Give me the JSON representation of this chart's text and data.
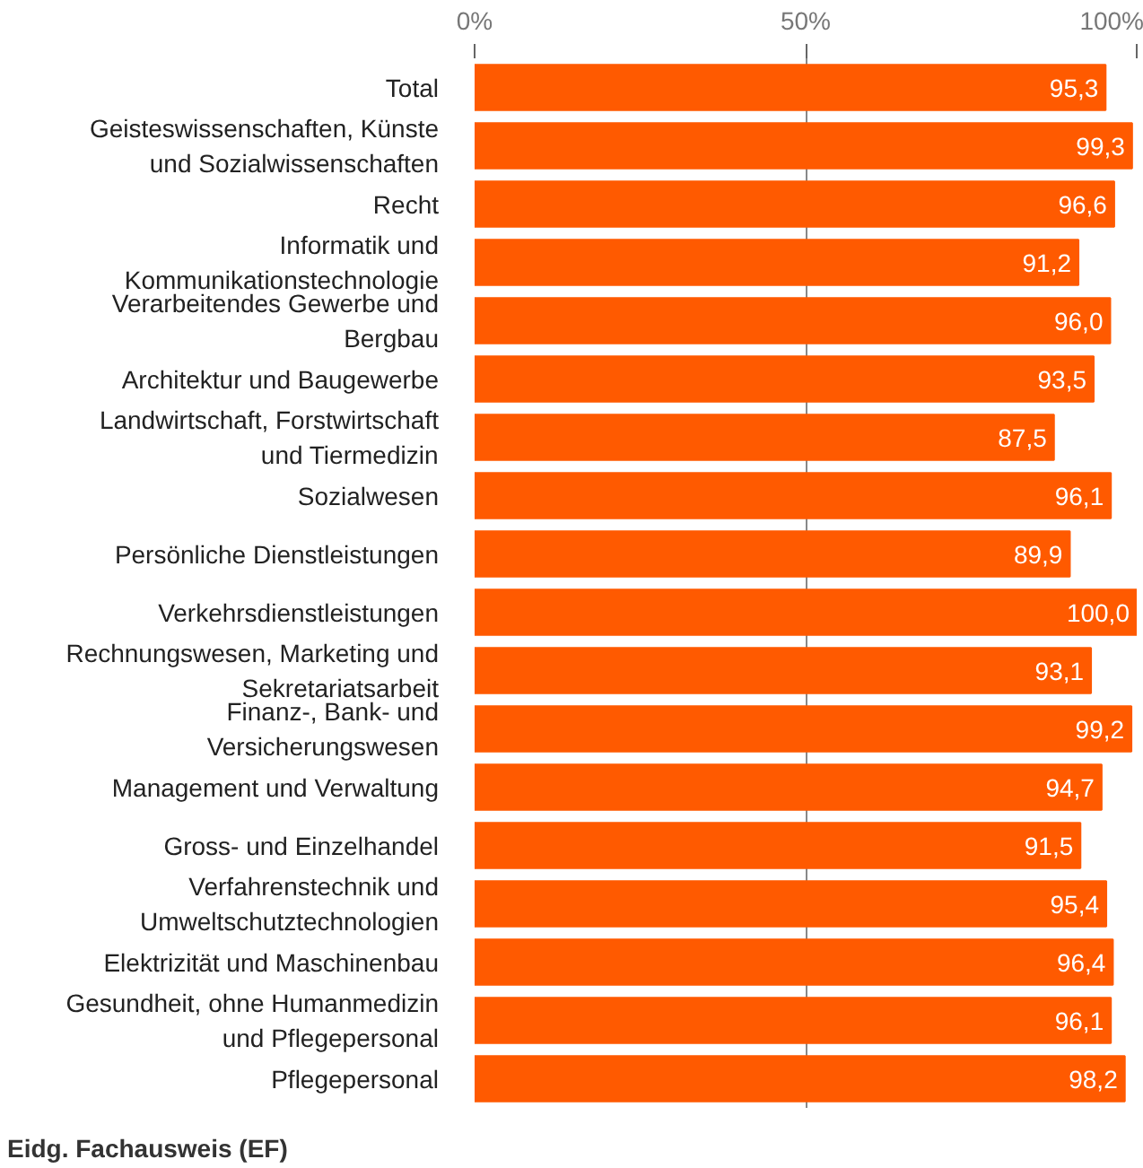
{
  "chart_data": {
    "type": "bar",
    "orientation": "horizontal",
    "categories": [
      "Total",
      "Geisteswissenschaften, Künste und Sozialwissenschaften",
      "Recht",
      "Informatik und Kommunikationstechnologie",
      "Verarbeitendes Gewerbe und Bergbau",
      "Architektur und Baugewerbe",
      "Landwirtschaft, Forstwirtschaft und Tiermedizin",
      "Sozialwesen",
      "Persönliche Dienstleistungen",
      "Verkehrsdienstleistungen",
      "Rechnungswesen, Marketing und Sekretariatsarbeit",
      "Finanz-, Bank- und Versicherungswesen",
      "Management und Verwaltung",
      "Gross- und Einzelhandel",
      "Verfahrenstechnik und Umweltschutztechnologien",
      "Elektrizität und Maschinenbau",
      "Gesundheit, ohne Humanmedizin und Pflegepersonal",
      "Pflegepersonal"
    ],
    "values": [
      95.3,
      99.3,
      96.6,
      91.2,
      96.0,
      93.5,
      87.5,
      96.1,
      89.9,
      100.0,
      93.1,
      99.2,
      94.7,
      91.5,
      95.4,
      96.4,
      96.1,
      98.2
    ],
    "value_labels": [
      "95,3",
      "99,3",
      "96,6",
      "91,2",
      "96,0",
      "93,5",
      "87,5",
      "96,1",
      "89,9",
      "100,0",
      "93,1",
      "99,2",
      "94,7",
      "91,5",
      "95,4",
      "96,4",
      "96,1",
      "98,2"
    ],
    "color": "#ff5a00",
    "xlim": [
      0,
      100
    ],
    "xticks": [
      {
        "value": 0,
        "label": "0%"
      },
      {
        "value": 50,
        "label": "50%"
      },
      {
        "value": 100,
        "label": "100%"
      }
    ],
    "grid": "x",
    "annotations": [
      "Eidg. Fachausweis (EF)"
    ]
  }
}
